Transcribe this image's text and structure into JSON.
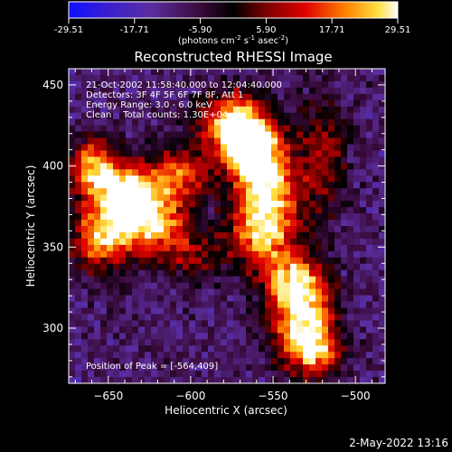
{
  "colorbar": {
    "ticks": [
      "-29.51",
      "-17.71",
      "-5.90",
      "5.90",
      "17.71",
      "29.51"
    ],
    "units_text": "(photons cm",
    "units_sup1": "-2",
    "units_mid": " s",
    "units_sup2": "-1",
    "units_end": " asec",
    "units_sup3": "-2",
    "units_close": ")",
    "range": [
      -29.51,
      29.51
    ]
  },
  "overlay": {
    "time_line": "21-Oct-2002 11:58:40.000 to 12:04:40.000",
    "detectors_line": "Detectors: 3F 4F 5F 6F 7F 8F, Att 1",
    "energy_line": "Energy Range: 3.0 - 6.0 keV",
    "clean_line": "Clean    Total counts: 1.30E+04",
    "peak_line": "Position of Peak = [-564,409]"
  },
  "footer": {
    "date_stamp": "2-May-2022 13:16"
  },
  "chart_data": {
    "type": "heatmap",
    "title": "Reconstructed RHESSI Image",
    "xlabel": "Heliocentric X (arcsec)",
    "ylabel": "Heliocentric Y (arcsec)",
    "xlim": [
      -674,
      -482
    ],
    "ylim": [
      266,
      460
    ],
    "x_ticks": [
      -650,
      -600,
      -550,
      -500
    ],
    "x_tick_labels": [
      "−650",
      "−600",
      "−550",
      "−500"
    ],
    "y_ticks": [
      300,
      350,
      400,
      450
    ],
    "y_tick_labels": [
      "300",
      "350",
      "400",
      "450"
    ],
    "colormap": [
      "#1010ff",
      "#3a1fd0",
      "#5a2ea0",
      "#3a0a3a",
      "#000000",
      "#7a0000",
      "#e00000",
      "#ff8000",
      "#ffe040",
      "#ffffff"
    ],
    "grid": false,
    "blobs": [
      {
        "x": -564,
        "y": 409,
        "amp": 31,
        "sx": 10,
        "sy": 14
      },
      {
        "x": -575,
        "y": 425,
        "amp": 24,
        "sx": 14,
        "sy": 14
      },
      {
        "x": -550,
        "y": 385,
        "amp": 20,
        "sx": 12,
        "sy": 22
      },
      {
        "x": -560,
        "y": 360,
        "amp": 18,
        "sx": 13,
        "sy": 16
      },
      {
        "x": -538,
        "y": 330,
        "amp": 18,
        "sx": 13,
        "sy": 14
      },
      {
        "x": -532,
        "y": 305,
        "amp": 24,
        "sx": 13,
        "sy": 18
      },
      {
        "x": -525,
        "y": 285,
        "amp": 16,
        "sx": 12,
        "sy": 10
      },
      {
        "x": -640,
        "y": 385,
        "amp": 24,
        "sx": 15,
        "sy": 14
      },
      {
        "x": -625,
        "y": 365,
        "amp": 22,
        "sx": 16,
        "sy": 14
      },
      {
        "x": -655,
        "y": 355,
        "amp": 20,
        "sx": 12,
        "sy": 14
      },
      {
        "x": -660,
        "y": 400,
        "amp": 18,
        "sx": 10,
        "sy": 12
      },
      {
        "x": -605,
        "y": 395,
        "amp": 16,
        "sx": 12,
        "sy": 12
      },
      {
        "x": -520,
        "y": 405,
        "amp": 12,
        "sx": 10,
        "sy": 25
      },
      {
        "x": -600,
        "y": 345,
        "amp": 10,
        "sx": 14,
        "sy": 10
      }
    ],
    "background_level": -10
  }
}
